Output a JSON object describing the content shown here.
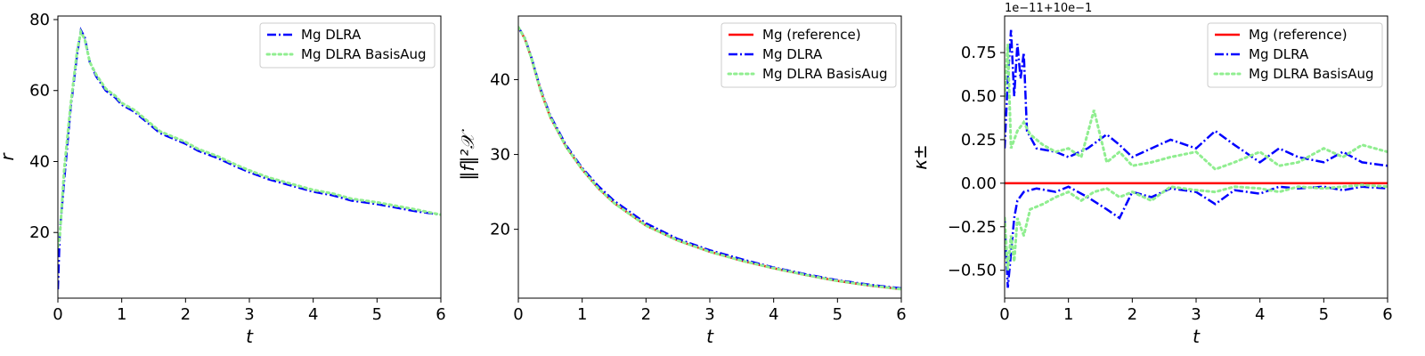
{
  "colors": {
    "reference": "#ff0000",
    "dlra": "#0000ff",
    "basisaug": "#90ee90"
  },
  "chart_data": [
    {
      "type": "line",
      "xlabel": "t",
      "ylabel": "r",
      "xlim": [
        0,
        6
      ],
      "ylim": [
        1.5,
        81
      ],
      "xticks": [
        "0",
        "1",
        "2",
        "3",
        "4",
        "5",
        "6"
      ],
      "yticks": [
        "20",
        "40",
        "60",
        "80"
      ],
      "legend": "top-right",
      "grid": false,
      "series": [
        {
          "name": "Mg DLRA",
          "style": "dashdot",
          "color": "#0000ff",
          "x": [
            0,
            0.03,
            0.1,
            0.2,
            0.3,
            0.36,
            0.42,
            0.5,
            0.6,
            0.75,
            0.9,
            1.0,
            1.2,
            1.4,
            1.6,
            1.8,
            2.0,
            2.2,
            2.5,
            2.8,
            3.0,
            3.3,
            3.6,
            4.0,
            4.3,
            4.6,
            5.0,
            5.3,
            5.6,
            6.0
          ],
          "y": [
            4,
            20,
            35,
            55,
            70,
            77,
            75,
            68,
            64,
            60,
            58,
            56,
            54,
            51,
            48,
            46.5,
            45,
            43,
            41,
            38.5,
            37,
            35,
            33.5,
            31.5,
            30.5,
            29,
            28,
            27,
            26,
            25
          ]
        },
        {
          "name": "Mg DLRA BasisAug",
          "style": "dotted",
          "color": "#90ee90",
          "x": [
            0,
            0.03,
            0.1,
            0.2,
            0.3,
            0.36,
            0.42,
            0.5,
            0.6,
            0.75,
            0.9,
            1.0,
            1.2,
            1.4,
            1.6,
            1.8,
            2.0,
            2.2,
            2.5,
            2.8,
            3.0,
            3.3,
            3.6,
            4.0,
            4.3,
            4.6,
            5.0,
            5.3,
            5.6,
            6.0
          ],
          "y": [
            16,
            19,
            38,
            56,
            71,
            76.5,
            74.5,
            68,
            64.5,
            60.5,
            58.5,
            56.5,
            54.5,
            51.5,
            48.5,
            47,
            45.5,
            43.5,
            41.5,
            39,
            37.5,
            35.5,
            34,
            32,
            31,
            29.5,
            28.5,
            27.5,
            26.5,
            25
          ]
        }
      ]
    },
    {
      "type": "line",
      "xlabel": "t",
      "ylabel": "‖f‖²𝒳",
      "xlim": [
        0,
        6
      ],
      "ylim": [
        10.8,
        48.5
      ],
      "xticks": [
        "0",
        "1",
        "2",
        "3",
        "4",
        "5",
        "6"
      ],
      "yticks": [
        "20",
        "30",
        "40"
      ],
      "legend": "top-right",
      "grid": false,
      "series": [
        {
          "name": "Mg (reference)",
          "style": "solid",
          "color": "#ff0000",
          "x": [
            0,
            0.1,
            0.2,
            0.35,
            0.5,
            0.75,
            1.0,
            1.25,
            1.5,
            2.0,
            2.5,
            3.0,
            3.5,
            4.0,
            4.5,
            5.0,
            5.5,
            6.0
          ],
          "y": [
            47,
            45.5,
            43,
            38.5,
            35,
            31,
            28,
            25.5,
            23.5,
            20.5,
            18.5,
            17,
            15.8,
            14.8,
            13.9,
            13.1,
            12.5,
            12.0
          ]
        },
        {
          "name": "Mg DLRA",
          "style": "dashdot",
          "color": "#0000ff",
          "x": [
            0,
            0.1,
            0.2,
            0.35,
            0.5,
            0.75,
            1.0,
            1.25,
            1.5,
            2.0,
            2.5,
            3.0,
            3.5,
            4.0,
            4.5,
            5.0,
            5.5,
            6.0
          ],
          "y": [
            47,
            45.6,
            43.1,
            38.7,
            35.2,
            31.2,
            28.2,
            25.8,
            23.8,
            20.8,
            18.7,
            17.2,
            16.0,
            14.9,
            14.0,
            13.2,
            12.6,
            12.1
          ]
        },
        {
          "name": "Mg DLRA BasisAug",
          "style": "dotted",
          "color": "#90ee90",
          "x": [
            0,
            0.1,
            0.2,
            0.35,
            0.5,
            0.75,
            1.0,
            1.25,
            1.5,
            2.0,
            2.5,
            3.0,
            3.5,
            4.0,
            4.5,
            5.0,
            5.5,
            6.0
          ],
          "y": [
            47,
            45.5,
            43,
            38.5,
            35,
            31,
            28,
            25.5,
            23.5,
            20.5,
            18.5,
            17,
            15.8,
            14.8,
            13.9,
            13.1,
            12.5,
            12.0
          ]
        }
      ]
    },
    {
      "type": "line",
      "xlabel": "t",
      "ylabel": "κ±",
      "offset_text": "1e−11+10e−1",
      "xlim": [
        0,
        6
      ],
      "ylim": [
        -0.66,
        0.96
      ],
      "xticks": [
        "0",
        "1",
        "2",
        "3",
        "4",
        "5",
        "6"
      ],
      "yticks": [
        "−0.50",
        "−0.25",
        "0.00",
        "0.25",
        "0.50",
        "0.75"
      ],
      "ytick_values": [
        -0.5,
        -0.25,
        0.0,
        0.25,
        0.5,
        0.75
      ],
      "legend": "top-right",
      "grid": false,
      "series": [
        {
          "name": "Mg (reference)",
          "style": "solid",
          "color": "#ff0000",
          "x": [
            0,
            6
          ],
          "y": [
            0.0,
            0.0
          ]
        },
        {
          "name": "Mg DLRA",
          "style": "dashdot",
          "color": "#0000ff",
          "x": [
            0,
            0.05,
            0.1,
            0.15,
            0.2,
            0.25,
            0.3,
            0.35,
            0.5,
            0.8,
            1.0,
            1.3,
            1.6,
            1.8,
            2.0,
            2.3,
            2.6,
            3.0,
            3.3,
            3.6,
            4.0,
            4.3,
            4.6,
            5.0,
            5.3,
            5.6,
            6.0
          ],
          "y": [
            0.2,
            0.6,
            0.88,
            0.5,
            0.8,
            0.6,
            0.75,
            0.3,
            0.2,
            0.18,
            0.15,
            0.2,
            0.28,
            0.22,
            0.15,
            0.2,
            0.25,
            0.2,
            0.3,
            0.22,
            0.12,
            0.2,
            0.15,
            0.12,
            0.18,
            0.12,
            0.1
          ]
        },
        {
          "name": "Mg DLRA",
          "style": "dashdot",
          "color": "#0000ff",
          "x": [
            0,
            0.05,
            0.1,
            0.15,
            0.2,
            0.3,
            0.5,
            0.8,
            1.0,
            1.3,
            1.6,
            1.8,
            2.0,
            2.3,
            2.6,
            3.0,
            3.3,
            3.6,
            4.0,
            4.3,
            4.6,
            5.0,
            5.3,
            5.6,
            6.0
          ],
          "y": [
            -0.2,
            -0.6,
            -0.4,
            -0.2,
            -0.1,
            -0.05,
            -0.03,
            -0.05,
            -0.02,
            -0.08,
            -0.15,
            -0.2,
            -0.05,
            -0.08,
            -0.03,
            -0.05,
            -0.12,
            -0.04,
            -0.06,
            -0.02,
            -0.03,
            -0.02,
            -0.04,
            -0.02,
            -0.03
          ]
        },
        {
          "name": "Mg DLRA BasisAug",
          "style": "dotted",
          "color": "#90ee90",
          "x": [
            0,
            0.05,
            0.1,
            0.2,
            0.3,
            0.4,
            0.6,
            0.8,
            1.0,
            1.2,
            1.4,
            1.6,
            1.8,
            2.0,
            2.3,
            2.6,
            3.0,
            3.3,
            3.6,
            4.0,
            4.3,
            4.6,
            5.0,
            5.3,
            5.6,
            6.0
          ],
          "y": [
            0.5,
            0.8,
            0.2,
            0.3,
            0.35,
            0.28,
            0.22,
            0.18,
            0.2,
            0.15,
            0.42,
            0.12,
            0.18,
            0.1,
            0.12,
            0.15,
            0.18,
            0.08,
            0.12,
            0.18,
            0.1,
            0.12,
            0.2,
            0.15,
            0.22,
            0.18
          ]
        },
        {
          "name": "Mg DLRA BasisAug",
          "style": "dotted",
          "color": "#90ee90",
          "x": [
            0,
            0.05,
            0.1,
            0.15,
            0.2,
            0.3,
            0.4,
            0.6,
            0.8,
            1.0,
            1.2,
            1.4,
            1.6,
            1.8,
            2.0,
            2.3,
            2.6,
            3.0,
            3.3,
            3.6,
            4.0,
            4.3,
            4.6,
            5.0,
            5.3,
            5.6,
            6.0
          ],
          "y": [
            -0.2,
            -0.5,
            -0.3,
            -0.45,
            -0.2,
            -0.3,
            -0.15,
            -0.12,
            -0.08,
            -0.05,
            -0.1,
            -0.05,
            -0.03,
            -0.08,
            -0.05,
            -0.1,
            -0.02,
            -0.04,
            -0.05,
            -0.02,
            -0.03,
            -0.05,
            -0.02,
            -0.03,
            -0.02,
            -0.01,
            -0.02
          ]
        }
      ],
      "legend_entries": [
        "Mg (reference)",
        "Mg DLRA",
        "Mg DLRA BasisAug"
      ]
    }
  ]
}
